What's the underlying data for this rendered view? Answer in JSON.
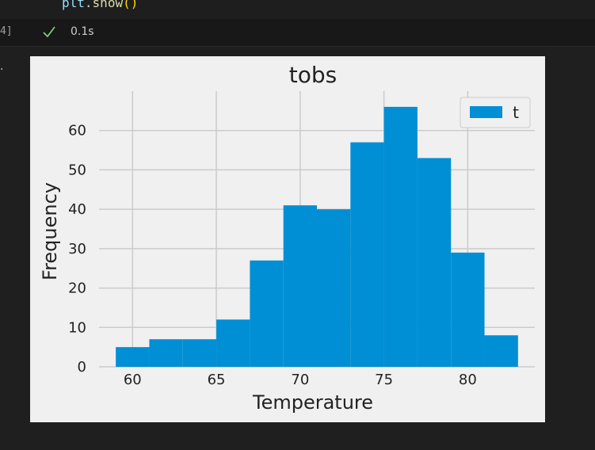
{
  "code": {
    "object": "plt",
    "method": "show",
    "parens": "()"
  },
  "cell_status": {
    "execution_count": "4]",
    "duration": "0.1s",
    "status_icon": "check-icon",
    "output_marker": "."
  },
  "colors": {
    "bar": "#008fd5",
    "grid": "#cbcbcb",
    "figure_bg": "#f0f0f0"
  },
  "chart_data": {
    "type": "histogram",
    "title": "tobs",
    "xlabel": "Temperature",
    "ylabel": "Frequency",
    "bin_edges": [
      59,
      61,
      63,
      65,
      67,
      69,
      71,
      73,
      75,
      77,
      79,
      81,
      83
    ],
    "values": [
      5,
      7,
      7,
      12,
      27,
      41,
      40,
      57,
      66,
      53,
      29,
      8
    ],
    "xlim": [
      58,
      84
    ],
    "ylim": [
      0,
      70
    ],
    "xticks": [
      60,
      65,
      70,
      75,
      80
    ],
    "yticks": [
      0,
      10,
      20,
      30,
      40,
      50,
      60
    ],
    "legend": {
      "label": "t",
      "placement": "top-right"
    },
    "grid": true
  }
}
